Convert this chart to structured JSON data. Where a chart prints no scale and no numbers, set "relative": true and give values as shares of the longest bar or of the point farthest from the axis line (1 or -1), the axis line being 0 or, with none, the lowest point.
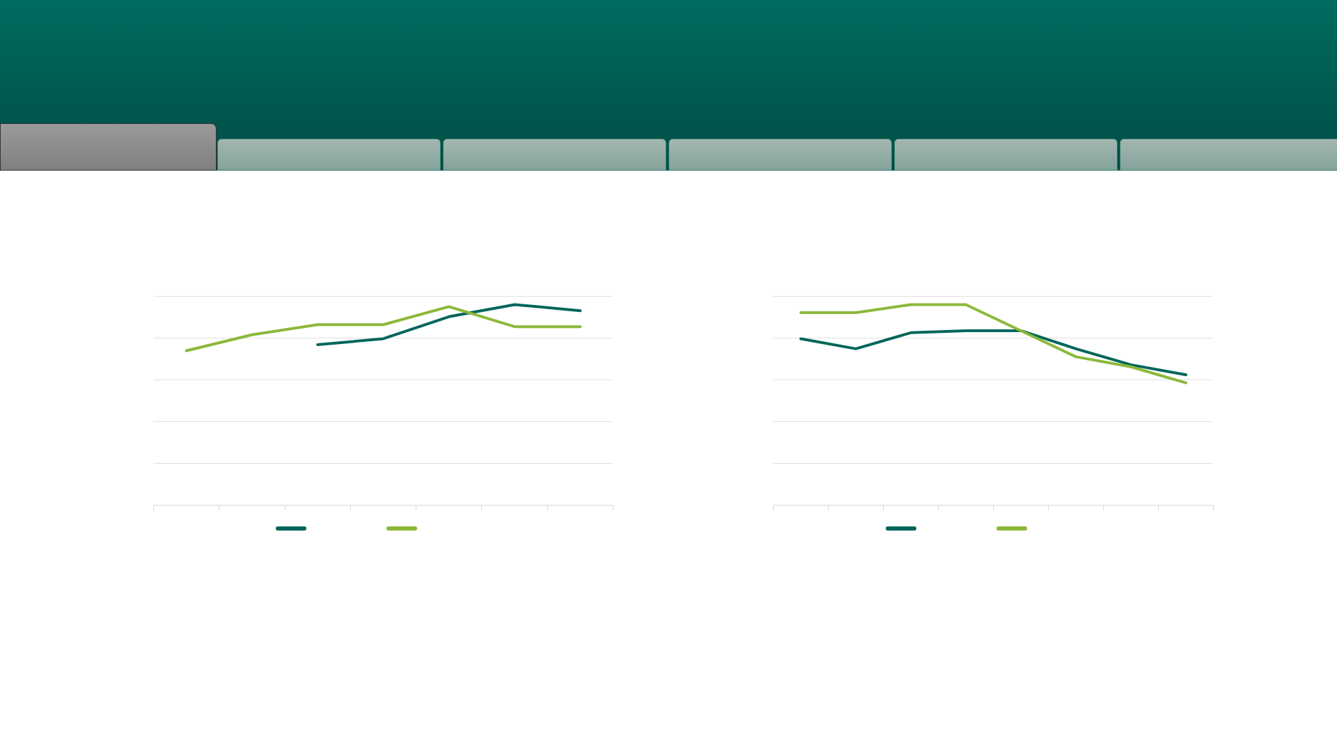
{
  "chart_data": [
    {
      "type": "line",
      "relative": true,
      "categories": [
        null,
        null,
        null,
        null,
        null,
        null,
        null
      ],
      "grid": "y",
      "line_style": "solid",
      "marker": "none",
      "series": [
        {
          "color": "#00665a",
          "values": [
            null,
            null,
            0.8,
            0.83,
            0.94,
            1,
            0.97
          ]
        },
        {
          "color": "#8cb83a",
          "values": [
            0.77,
            0.85,
            0.9,
            0.9,
            0.99,
            0.89,
            0.89
          ]
        }
      ]
    },
    {
      "type": "line",
      "relative": true,
      "categories": [
        null,
        null,
        null,
        null,
        null,
        null,
        null,
        null
      ],
      "grid": "y",
      "line_style": "solid",
      "marker": "none",
      "series": [
        {
          "color": "#00665a",
          "values": [
            0.83,
            0.78,
            0.86,
            0.87,
            0.87,
            0.78,
            0.7,
            0.65
          ]
        },
        {
          "color": "#8cb83a",
          "values": [
            0.96,
            0.96,
            1,
            1,
            0.87,
            0.74,
            0.69,
            0.61
          ]
        }
      ]
    }
  ]
}
